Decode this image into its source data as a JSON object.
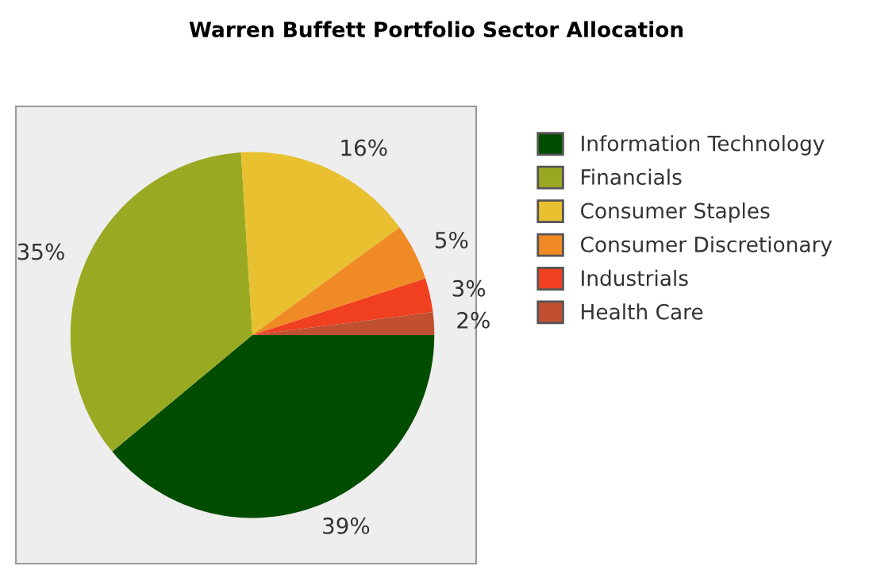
{
  "chart_data": {
    "type": "pie",
    "title": "Warren Buffett Portfolio Sector Allocation",
    "categories": [
      "Information Technology",
      "Financials",
      "Consumer Staples",
      "Consumer Discretionary",
      "Industrials",
      "Health Care"
    ],
    "values": [
      39,
      35,
      16,
      5,
      3,
      2
    ],
    "value_labels": [
      "39%",
      "35%",
      "16%",
      "5%",
      "3%",
      "2%"
    ],
    "colors": [
      "#004d00",
      "#99aa22",
      "#e8c030",
      "#f08a24",
      "#f04020",
      "#c05030"
    ],
    "legend": "right"
  }
}
